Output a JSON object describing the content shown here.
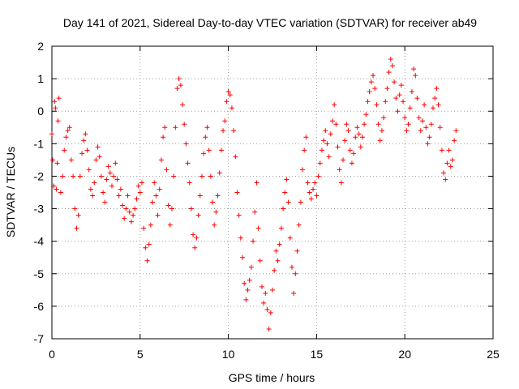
{
  "chart_data": {
    "type": "scatter",
    "title": "Day 141 of 2021, Sidereal Day-to-day VTEC variation (SDTVAR) for receiver ab49",
    "xlabel": "GPS time / hours",
    "ylabel": "SDTVAR / TECUs",
    "xlim": [
      0,
      25
    ],
    "ylim": [
      -7,
      2
    ],
    "xticks": [
      0,
      5,
      10,
      15,
      20,
      25
    ],
    "yticks": [
      -7,
      -6,
      -5,
      -4,
      -3,
      -2,
      -1,
      0,
      1,
      2
    ],
    "grid": true,
    "marker": "+",
    "color": "#ff0000",
    "series": [
      {
        "name": "SDTVAR",
        "x": [
          0.0,
          0.05,
          0.1,
          0.15,
          0.2,
          0.25,
          0.3,
          0.35,
          0.4,
          0.5,
          0.6,
          0.7,
          0.8,
          0.9,
          1.0,
          1.1,
          1.2,
          1.3,
          1.4,
          1.5,
          1.6,
          1.7,
          1.8,
          1.9,
          2.0,
          2.1,
          2.2,
          2.3,
          2.4,
          2.5,
          2.6,
          2.7,
          2.8,
          2.9,
          3.0,
          3.1,
          3.2,
          3.3,
          3.4,
          3.5,
          3.6,
          3.7,
          3.8,
          3.9,
          4.0,
          4.1,
          4.2,
          4.3,
          4.4,
          4.5,
          4.6,
          4.7,
          4.8,
          4.9,
          5.0,
          5.1,
          5.2,
          5.3,
          5.4,
          5.5,
          5.6,
          5.7,
          5.8,
          5.9,
          6.0,
          6.1,
          6.2,
          6.3,
          6.4,
          6.5,
          6.6,
          6.7,
          6.8,
          6.9,
          7.0,
          7.1,
          7.2,
          7.3,
          7.4,
          7.5,
          7.6,
          7.7,
          7.8,
          7.9,
          8.0,
          8.1,
          8.2,
          8.3,
          8.4,
          8.5,
          8.6,
          8.7,
          8.8,
          8.9,
          9.0,
          9.1,
          9.2,
          9.3,
          9.4,
          9.5,
          9.6,
          9.7,
          9.8,
          9.9,
          10.0,
          10.1,
          10.2,
          10.3,
          10.4,
          10.5,
          10.6,
          10.7,
          10.8,
          10.9,
          11.0,
          11.1,
          11.2,
          11.3,
          11.4,
          11.5,
          11.6,
          11.7,
          11.8,
          11.9,
          12.0,
          12.1,
          12.2,
          12.3,
          12.4,
          12.5,
          12.6,
          12.7,
          12.8,
          12.9,
          13.0,
          13.1,
          13.2,
          13.3,
          13.4,
          13.5,
          13.6,
          13.7,
          13.8,
          13.9,
          14.0,
          14.1,
          14.2,
          14.3,
          14.4,
          14.5,
          14.6,
          14.7,
          14.8,
          14.9,
          15.0,
          15.1,
          15.2,
          15.3,
          15.4,
          15.5,
          15.6,
          15.7,
          15.8,
          15.9,
          16.0,
          16.1,
          16.2,
          16.3,
          16.4,
          16.5,
          16.6,
          16.7,
          16.8,
          16.9,
          17.0,
          17.1,
          17.2,
          17.3,
          17.4,
          17.5,
          17.6,
          17.7,
          17.8,
          17.9,
          18.0,
          18.1,
          18.2,
          18.3,
          18.4,
          18.5,
          18.6,
          18.7,
          18.8,
          18.9,
          19.0,
          19.1,
          19.2,
          19.3,
          19.4,
          19.5,
          19.6,
          19.7,
          19.8,
          19.9,
          20.0,
          20.1,
          20.2,
          20.3,
          20.4,
          20.5,
          20.6,
          20.7,
          20.8,
          20.9,
          21.0,
          21.1,
          21.2,
          21.3,
          21.4,
          21.5,
          21.6,
          21.7,
          21.8,
          21.9,
          22.0,
          22.1,
          22.2,
          22.3,
          22.4,
          22.5,
          22.6,
          22.7,
          22.8,
          22.9
        ],
        "y": [
          -0.7,
          -1.5,
          -2.3,
          0.3,
          0.1,
          -2.4,
          -1.6,
          -0.3,
          0.4,
          -2.5,
          -2.0,
          -1.2,
          -0.8,
          -0.6,
          -0.5,
          -1.5,
          -2.0,
          -3.0,
          -3.6,
          -3.2,
          -2.0,
          -1.3,
          -0.9,
          -0.7,
          -1.2,
          -1.8,
          -2.4,
          -2.6,
          -2.2,
          -1.5,
          -1.1,
          -1.4,
          -2.0,
          -2.5,
          -2.8,
          -2.1,
          -1.7,
          -1.9,
          -2.3,
          -2.0,
          -1.6,
          -2.1,
          -2.6,
          -2.4,
          -2.9,
          -3.3,
          -3.0,
          -2.6,
          -3.1,
          -3.4,
          -3.2,
          -3.0,
          -2.7,
          -2.3,
          -2.5,
          -2.2,
          -3.6,
          -4.2,
          -4.6,
          -4.1,
          -3.5,
          -2.8,
          -2.2,
          -2.6,
          -3.2,
          -2.4,
          -1.5,
          -0.8,
          -0.5,
          -1.8,
          -2.9,
          -3.5,
          -3.0,
          -2.0,
          -0.5,
          0.7,
          1.0,
          0.8,
          0.2,
          -0.4,
          -1.0,
          -1.6,
          -2.2,
          -3.0,
          -3.8,
          -4.2,
          -3.9,
          -3.2,
          -2.6,
          -2.0,
          -1.3,
          -0.8,
          -0.5,
          -1.2,
          -2.0,
          -2.8,
          -3.5,
          -3.1,
          -2.6,
          -1.9,
          -1.2,
          -0.6,
          -0.3,
          0.3,
          0.6,
          0.5,
          0.1,
          -0.6,
          -1.4,
          -2.5,
          -3.2,
          -3.9,
          -4.5,
          -5.3,
          -5.8,
          -5.5,
          -5.2,
          -4.8,
          -4.0,
          -3.1,
          -2.2,
          -3.6,
          -4.6,
          -5.4,
          -5.9,
          -5.6,
          -6.1,
          -6.7,
          -6.2,
          -5.5,
          -4.9,
          -4.3,
          -4.6,
          -4.1,
          -3.6,
          -3.0,
          -2.5,
          -2.1,
          -2.8,
          -3.9,
          -4.8,
          -5.6,
          -5.0,
          -4.3,
          -3.5,
          -2.8,
          -1.8,
          -1.2,
          -0.8,
          -2.2,
          -2.5,
          -2.7,
          -2.4,
          -2.2,
          -2.6,
          -2.0,
          -1.6,
          -1.2,
          -0.9,
          -0.6,
          -1.0,
          -1.4,
          -0.7,
          -0.3,
          0.2,
          -0.4,
          -1.1,
          -1.8,
          -2.2,
          -1.5,
          -0.9,
          -0.4,
          -0.6,
          -1.2,
          -1.6,
          -1.3,
          -0.8,
          -0.5,
          -0.7,
          -1.1,
          -0.8,
          -0.4,
          -0.1,
          0.3,
          0.6,
          0.9,
          1.1,
          0.7,
          0.2,
          -0.4,
          -0.9,
          -0.6,
          -0.2,
          0.3,
          0.7,
          1.2,
          1.6,
          1.4,
          0.9,
          0.4,
          0.0,
          0.5,
          0.8,
          0.3,
          -0.2,
          -0.6,
          -0.4,
          0.1,
          0.6,
          1.3,
          1.1,
          0.4,
          -0.2,
          -0.6,
          -0.3,
          0.2,
          -0.5,
          -1.0,
          -0.8,
          -0.4,
          0.1,
          0.4,
          0.7,
          0.2,
          -0.5,
          -1.2,
          -1.9,
          -2.1,
          -1.6,
          -1.2,
          -1.7,
          -1.5,
          -0.9,
          -0.6
        ]
      }
    ]
  }
}
